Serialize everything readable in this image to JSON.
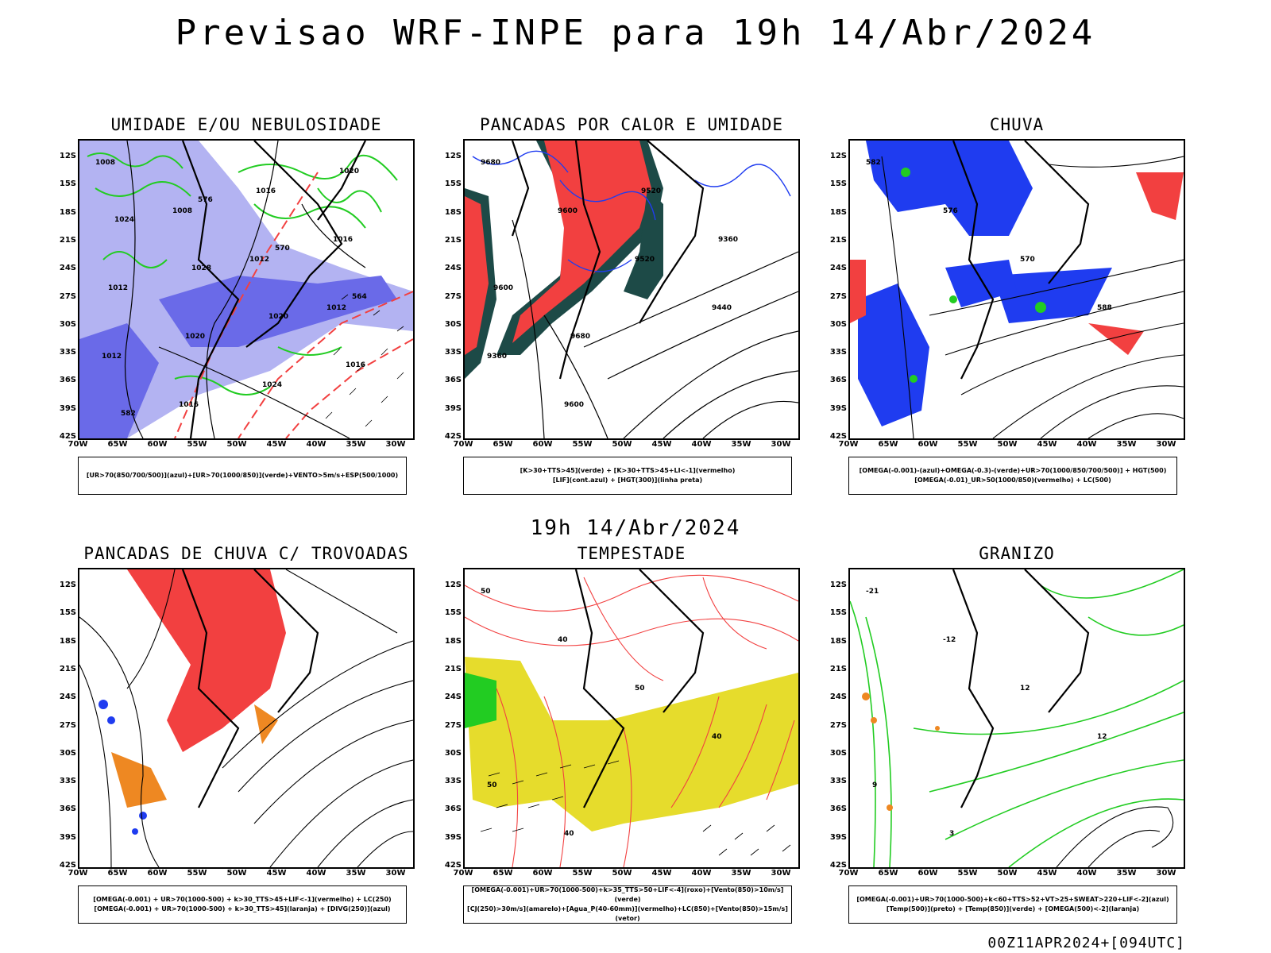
{
  "title": "Previsao WRF-INPE  para 19h 14/Abr/2024",
  "mid_title": "19h 14/Abr/2024",
  "footer": "00Z11APR2024+[094UTC]",
  "lat_labels": [
    "12S",
    "15S",
    "18S",
    "21S",
    "24S",
    "27S",
    "30S",
    "33S",
    "36S",
    "39S",
    "42S"
  ],
  "lon_labels": [
    "70W",
    "65W",
    "60W",
    "55W",
    "50W",
    "45W",
    "40W",
    "35W",
    "30W"
  ],
  "panels": [
    {
      "title": "UMIDADE E/OU NEBULOSIDADE",
      "legend": [
        "[UR>70(850/700/500)](azul)+[UR>70(1000/850)](verde)+VENTO>5m/s+ESP(500/1000)"
      ],
      "contour_labels": [
        "1008",
        "1008",
        "1012",
        "1012",
        "1012",
        "1016",
        "1016",
        "1016",
        "1012",
        "1020",
        "1024",
        "1020",
        "1024",
        "1028",
        "1020",
        "1016",
        "582",
        "576",
        "570",
        "564"
      ]
    },
    {
      "title": "PANCADAS POR CALOR E UMIDADE",
      "legend": [
        "[K>30+TTS>45](verde) + [K>30+TTS>45+LI<-1](vermelho)",
        "[LIF](cont.azul) + [HGT(300)](linha preta)"
      ],
      "contour_labels": [
        "9680",
        "9600",
        "9520",
        "9440",
        "9360",
        "9600",
        "9520",
        "9360",
        "9600",
        "9680"
      ]
    },
    {
      "title": "CHUVA",
      "legend": [
        "[OMEGA(-0.001)-(azul)+OMEGA(-0.3)-(verde)+UR>70(1000/850/700/500)] + HGT(500)",
        "[OMEGA(-0.01)_UR>50(1000/850)(vermelho) + LC(500)"
      ],
      "contour_labels": [
        "582",
        "576",
        "570",
        "588"
      ]
    },
    {
      "title": "PANCADAS DE CHUVA C/ TROVOADAS",
      "legend": [
        "[OMEGA(-0.001) + UR>70(1000-500) + k>30_TTS>45+LIF<-1](vermelho) + LC(250)",
        "[OMEGA(-0.001) + UR>70(1000-500) + k>30_TTS>45](laranja) + [DIVG(250)](azul)"
      ],
      "contour_labels": []
    },
    {
      "title": "TEMPESTADE",
      "legend": [
        "[OMEGA(-0.001)+UR>70(1000-500)+k>35_TTS>50+LIF<-4](roxo)+[Vento(850)>10m/s](verde)",
        "[CJ(250)>30m/s](amarelo)+[Agua_P(40-60mm)](vermelho)+LC(850)+[Vento(850)>15m/s](vetor)"
      ],
      "contour_labels": [
        "50",
        "40",
        "50",
        "40",
        "50",
        "40"
      ]
    },
    {
      "title": "GRANIZO",
      "legend": [
        "[OMEGA(-0.001)+UR>70(1000-500)+k<60+TTS>52+VT>25+SWEAT>220+LIF<-2](azul)",
        "[Temp(500)](preto) + [Temp(850)](verde) + [OMEGA(500)<-2](laranja)"
      ],
      "contour_labels": [
        "-21",
        "-12",
        "12",
        "12",
        "9",
        "3"
      ]
    }
  ],
  "colors": {
    "blue_light": "#a9a9f0",
    "blue_mid": "#7777ee",
    "blue": "#1f3cf0",
    "green": "#22cc22",
    "red": "#f24040",
    "dark_teal": "#1d4a47",
    "yellow": "#e6dc2c",
    "orange": "#ee8822"
  }
}
